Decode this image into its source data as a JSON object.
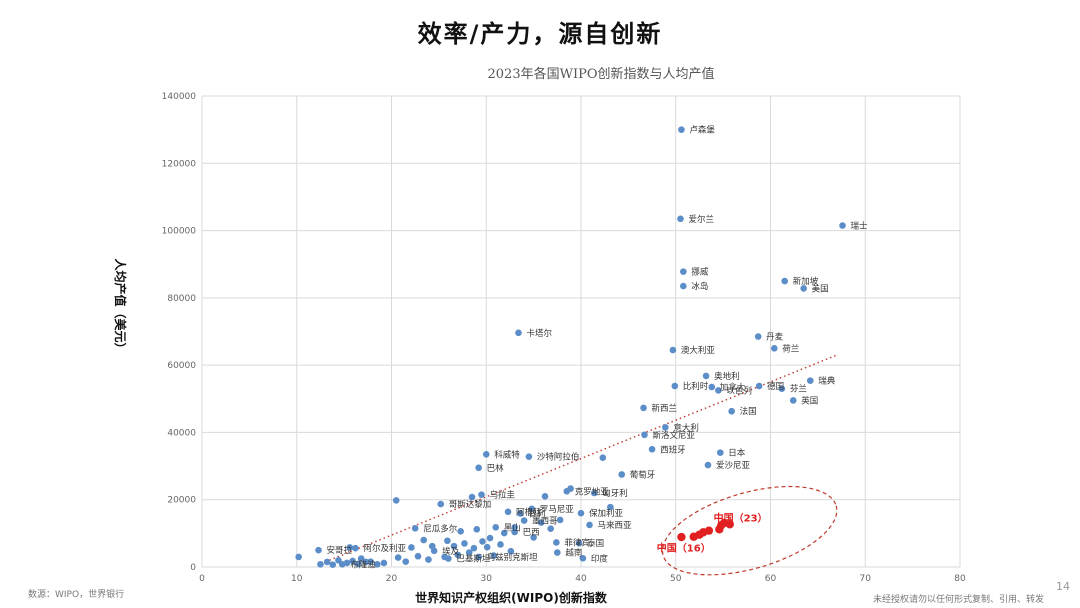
{
  "slide": {
    "heading": "效率/产力，源自创新",
    "source": "数源：WIPO，世界银行",
    "copyright": "未经授权请勿以任何形式复制、引用、转发",
    "page_number": "14"
  },
  "colors": {
    "points": "#5B8DC8",
    "china": "#E02020",
    "trend": "#C0392B",
    "grid": "#D9D9D9",
    "axis_text": "#666666"
  },
  "chart_data": {
    "type": "scatter",
    "title": "2023年各国WIPO创新指数与人均产值",
    "xlabel": "世界知识产权组织(WIPO)创新指数",
    "ylabel": "人均产值（美元）",
    "xlim": [
      0,
      80
    ],
    "ylim": [
      0,
      140000
    ],
    "xticks": [
      0,
      10,
      20,
      30,
      40,
      50,
      60,
      70,
      80
    ],
    "yticks": [
      0,
      20000,
      40000,
      60000,
      80000,
      100000,
      120000,
      140000
    ],
    "grid": true,
    "trendline": {
      "style": "dotted",
      "from": [
        13,
        1500
      ],
      "to": [
        67,
        63000
      ]
    },
    "series": [
      {
        "key": "countries",
        "points": [
          {
            "x": 50.6,
            "y": 130000,
            "label": "卢森堡"
          },
          {
            "x": 50.5,
            "y": 103500,
            "label": "爱尔兰"
          },
          {
            "x": 67.6,
            "y": 101500,
            "label": "瑞士"
          },
          {
            "x": 50.8,
            "y": 87800,
            "label": "挪威"
          },
          {
            "x": 61.5,
            "y": 85000,
            "label": "新加坡"
          },
          {
            "x": 50.8,
            "y": 83500,
            "label": "冰岛"
          },
          {
            "x": 63.5,
            "y": 82800,
            "label": "美国"
          },
          {
            "x": 33.4,
            "y": 69600,
            "label": "卡塔尔"
          },
          {
            "x": 58.7,
            "y": 68500,
            "label": "丹麦"
          },
          {
            "x": 60.4,
            "y": 65000,
            "label": "荷兰"
          },
          {
            "x": 49.7,
            "y": 64500,
            "label": "澳大利亚"
          },
          {
            "x": 53.2,
            "y": 56800,
            "label": "奥地利"
          },
          {
            "x": 49.9,
            "y": 53800,
            "label": "比利时"
          },
          {
            "x": 64.2,
            "y": 55400,
            "label": "瑞典"
          },
          {
            "x": 58.8,
            "y": 53800,
            "label": "德国"
          },
          {
            "x": 61.2,
            "y": 53000,
            "label": "芬兰"
          },
          {
            "x": 54.5,
            "y": 52500,
            "label": "以色列"
          },
          {
            "x": 53.8,
            "y": 53500,
            "label": "加拿大"
          },
          {
            "x": 62.4,
            "y": 49500,
            "label": "英国"
          },
          {
            "x": 46.6,
            "y": 47300,
            "label": "新西兰"
          },
          {
            "x": 55.9,
            "y": 46300,
            "label": "法国"
          },
          {
            "x": 48.9,
            "y": 41500,
            "label": "意大利"
          },
          {
            "x": 46.7,
            "y": 39300,
            "label": "斯洛文尼亚"
          },
          {
            "x": 54.7,
            "y": 34000,
            "label": "日本"
          },
          {
            "x": 47.5,
            "y": 35000,
            "label": "西班牙"
          },
          {
            "x": 53.4,
            "y": 30300,
            "label": "爱沙尼亚"
          },
          {
            "x": 30.0,
            "y": 33500,
            "label": "科威特"
          },
          {
            "x": 34.5,
            "y": 32800,
            "label": "沙特阿拉伯"
          },
          {
            "x": 44.3,
            "y": 27500,
            "label": "葡萄牙"
          },
          {
            "x": 29.2,
            "y": 29500,
            "label": "巴林"
          },
          {
            "x": 38.5,
            "y": 22500,
            "label": "克罗地亚"
          },
          {
            "x": 41.4,
            "y": 22000,
            "label": "匈牙利"
          },
          {
            "x": 29.5,
            "y": 21500,
            "label": "乌拉圭"
          },
          {
            "x": 34.8,
            "y": 17300,
            "label": "罗马尼亚"
          },
          {
            "x": 25.2,
            "y": 18700,
            "label": "哥斯达黎加"
          },
          {
            "x": 32.3,
            "y": 16400,
            "label": "阿根廷"
          },
          {
            "x": 33.6,
            "y": 15900,
            "label": "智利"
          },
          {
            "x": 40.0,
            "y": 16000,
            "label": "保加利亚"
          },
          {
            "x": 34.0,
            "y": 13800,
            "label": "墨西哥"
          },
          {
            "x": 40.9,
            "y": 12500,
            "label": "马来西亚"
          },
          {
            "x": 22.5,
            "y": 11500,
            "label": "尼瓜多尔"
          },
          {
            "x": 31.0,
            "y": 11800,
            "label": "黑山"
          },
          {
            "x": 33.0,
            "y": 10400,
            "label": "巴西"
          },
          {
            "x": 37.4,
            "y": 7300,
            "label": "菲律宾"
          },
          {
            "x": 39.8,
            "y": 7100,
            "label": "泰国"
          },
          {
            "x": 16.2,
            "y": 5600,
            "label": "阿尔及利亚"
          },
          {
            "x": 12.3,
            "y": 5000,
            "label": "安哥拉"
          },
          {
            "x": 24.5,
            "y": 4800,
            "label": "埃及"
          },
          {
            "x": 37.5,
            "y": 4300,
            "label": "越南"
          },
          {
            "x": 40.2,
            "y": 2600,
            "label": "印度"
          },
          {
            "x": 26.0,
            "y": 2500,
            "label": "巴基斯坦"
          },
          {
            "x": 29.2,
            "y": 3000,
            "label": "乌兹别克斯坦"
          },
          {
            "x": 14.8,
            "y": 800,
            "label": "布隆迪"
          },
          {
            "x": 10.2,
            "y": 3000
          },
          {
            "x": 12.5,
            "y": 800
          },
          {
            "x": 13.2,
            "y": 1500
          },
          {
            "x": 13.8,
            "y": 700
          },
          {
            "x": 14.4,
            "y": 2000
          },
          {
            "x": 15.3,
            "y": 1200
          },
          {
            "x": 15.6,
            "y": 5800
          },
          {
            "x": 15.9,
            "y": 1800
          },
          {
            "x": 16.5,
            "y": 900
          },
          {
            "x": 16.8,
            "y": 2500
          },
          {
            "x": 17.3,
            "y": 1500
          },
          {
            "x": 17.8,
            "y": 1600
          },
          {
            "x": 18.5,
            "y": 800
          },
          {
            "x": 19.2,
            "y": 1200
          },
          {
            "x": 20.5,
            "y": 19800
          },
          {
            "x": 20.7,
            "y": 2800
          },
          {
            "x": 21.5,
            "y": 1600
          },
          {
            "x": 22.1,
            "y": 5800
          },
          {
            "x": 22.8,
            "y": 3200
          },
          {
            "x": 23.4,
            "y": 8000
          },
          {
            "x": 23.9,
            "y": 2200
          },
          {
            "x": 24.3,
            "y": 6200
          },
          {
            "x": 25.6,
            "y": 3000
          },
          {
            "x": 25.9,
            "y": 7800
          },
          {
            "x": 26.6,
            "y": 6200
          },
          {
            "x": 27.0,
            "y": 3600
          },
          {
            "x": 27.3,
            "y": 10600
          },
          {
            "x": 27.7,
            "y": 7000
          },
          {
            "x": 28.2,
            "y": 4300
          },
          {
            "x": 28.5,
            "y": 20800
          },
          {
            "x": 28.7,
            "y": 5600
          },
          {
            "x": 29.0,
            "y": 11200
          },
          {
            "x": 29.6,
            "y": 7600
          },
          {
            "x": 30.1,
            "y": 5900
          },
          {
            "x": 30.4,
            "y": 8600
          },
          {
            "x": 30.8,
            "y": 3400
          },
          {
            "x": 31.5,
            "y": 6700
          },
          {
            "x": 31.9,
            "y": 10100
          },
          {
            "x": 32.6,
            "y": 4700
          },
          {
            "x": 33.0,
            "y": 11800
          },
          {
            "x": 35.0,
            "y": 8800
          },
          {
            "x": 35.8,
            "y": 13200
          },
          {
            "x": 36.2,
            "y": 21000
          },
          {
            "x": 36.8,
            "y": 11400
          },
          {
            "x": 37.8,
            "y": 14000
          },
          {
            "x": 38.9,
            "y": 23300
          },
          {
            "x": 42.3,
            "y": 32500
          },
          {
            "x": 43.1,
            "y": 17800
          }
        ]
      },
      {
        "key": "china",
        "highlight": true,
        "annotations": [
          {
            "text": "中国（23）",
            "x": 54,
            "y": 13500
          },
          {
            "text": "中国（16）",
            "x": 48,
            "y": 4600
          }
        ],
        "points": [
          {
            "x": 50.6,
            "y": 8900
          },
          {
            "x": 51.9,
            "y": 9000
          },
          {
            "x": 52.5,
            "y": 9600
          },
          {
            "x": 52.9,
            "y": 10300
          },
          {
            "x": 53.5,
            "y": 10800
          },
          {
            "x": 54.6,
            "y": 11200
          },
          {
            "x": 54.8,
            "y": 12400
          },
          {
            "x": 55.1,
            "y": 13100
          },
          {
            "x": 55.7,
            "y": 12700
          }
        ]
      }
    ]
  }
}
